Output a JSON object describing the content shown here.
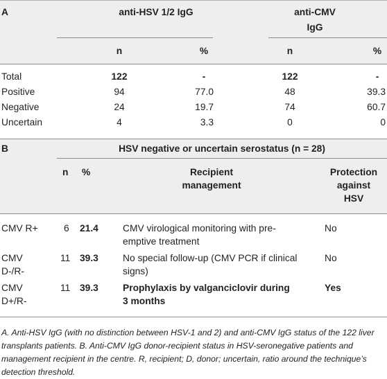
{
  "tableA": {
    "label": "A",
    "hsv_header": "anti-HSV 1/2 IgG",
    "cmv_header_line1": "anti-CMV",
    "cmv_header_line2": "IgG",
    "sub_n1": "n",
    "sub_pct1": "%",
    "sub_n2": "n",
    "sub_pct2": "%",
    "rows": [
      {
        "label": "Total",
        "n1": "122",
        "p1": "-",
        "n2": "122",
        "p2": "-"
      },
      {
        "label": "Positive",
        "n1": "94",
        "p1": "77.0",
        "n2": "48",
        "p2": "39.3"
      },
      {
        "label": "Negative",
        "n1": "24",
        "p1": "19.7",
        "n2": "74",
        "p2": "60.7"
      },
      {
        "label": "Uncertain",
        "n1": "4",
        "p1": "3.3",
        "n2": "0",
        "p2": "0"
      }
    ]
  },
  "tableB": {
    "label": "B",
    "span_header": "HSV negative or uncertain serostatus (n = 28)",
    "col_n": "n",
    "col_pct": "%",
    "col_mgmt_line1": "Recipient",
    "col_mgmt_line2": "management",
    "col_prot_line1": "Protection",
    "col_prot_line2": "against",
    "col_prot_line3": "HSV",
    "rows": [
      {
        "group_l1": "CMV R+",
        "group_l2": "",
        "n": "6",
        "pct": "21.4",
        "mgmt_l1": "CMV virological monitoring with pre-",
        "mgmt_l2": "emptive treatment",
        "prot": "No"
      },
      {
        "group_l1": "CMV",
        "group_l2": "D-/R-",
        "n": "11",
        "pct": "39.3",
        "mgmt_l1": "No special follow-up (CMV PCR if clinical",
        "mgmt_l2": "signs)",
        "prot": "No"
      },
      {
        "group_l1": "CMV",
        "group_l2": "D+/R-",
        "n": "11",
        "pct": "39.3",
        "mgmt_l1": "Prophylaxis by valganciclovir during",
        "mgmt_l2": "3 months",
        "prot": "Yes"
      }
    ]
  },
  "footnote": "A. Anti-HSV IgG (with no distinction between HSV-1 and 2) and anti-CMV IgG status of the 122 liver transplants patients. B. Anti-CMV IgG donor-recipient status in HSV-seronegative patients and management recipient in the centre. R, recipient; D, donor; uncertain, ratio around the technique’s detection threshold."
}
